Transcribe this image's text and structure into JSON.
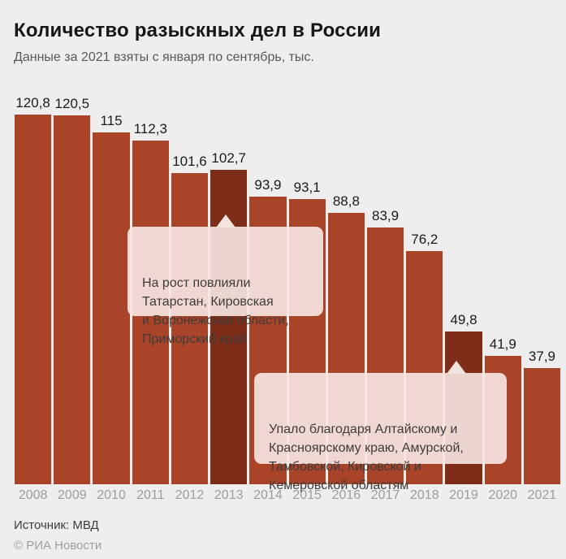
{
  "header": {
    "title": "Количество разыскных дел в России",
    "subtitle": "Данные за 2021 взяты с января по сентябрь, тыс."
  },
  "chart_data": {
    "type": "bar",
    "categories": [
      "2008",
      "2009",
      "2010",
      "2011",
      "2012",
      "2013",
      "2014",
      "2015",
      "2016",
      "2017",
      "2018",
      "2019",
      "2020",
      "2021"
    ],
    "values": [
      120.8,
      120.5,
      115,
      112.3,
      101.6,
      102.7,
      93.9,
      93.1,
      88.8,
      83.9,
      76.2,
      49.8,
      41.9,
      37.9
    ],
    "value_labels": [
      "120,8",
      "120,5",
      "115",
      "112,3",
      "101,6",
      "102,7",
      "93,9",
      "93,1",
      "88,8",
      "83,9",
      "76,2",
      "49,8",
      "41,9",
      "37,9"
    ],
    "highlighted_indices": [
      5,
      11
    ],
    "bar_color": "#a94428",
    "highlight_color": "#7e2e18",
    "background_color": "#efeeee",
    "ylim": [
      0,
      120.8
    ],
    "grid": false,
    "legend": false,
    "title": "Количество разыскных дел в России",
    "xlabel": "",
    "ylabel": ""
  },
  "annotations": {
    "growth": {
      "text": "На рост повлияли\nТатарстан, Кировская\nи Воронежская области,\nПриморский край",
      "target_year": "2013"
    },
    "drop": {
      "text": "Упало благодаря Алтайскому и\nКрасноярскому краю, Амурской,\nТамбовской, Кировской и\nКемеровской областям",
      "target_year": "2019"
    }
  },
  "footer": {
    "source": "Источник: МВД",
    "copyright": "© РИА Новости"
  }
}
